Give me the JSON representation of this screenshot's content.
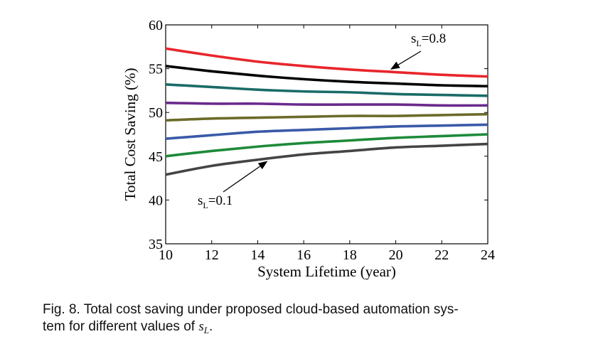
{
  "chart_data": {
    "type": "line",
    "xlabel": "System Lifetime (year)",
    "ylabel": "Total Cost Saving (%)",
    "xlim": [
      10,
      24
    ],
    "ylim": [
      35,
      60
    ],
    "xticks": [
      10,
      12,
      14,
      16,
      18,
      20,
      22,
      24
    ],
    "yticks": [
      35,
      40,
      45,
      50,
      55,
      60
    ],
    "grid": false,
    "legend": "none",
    "x": [
      10,
      12,
      14,
      16,
      18,
      20,
      22,
      24
    ],
    "series": [
      {
        "name": "s_L=0.8",
        "color": "#e8262c",
        "values": [
          57.3,
          56.5,
          55.8,
          55.3,
          54.9,
          54.6,
          54.3,
          54.1
        ]
      },
      {
        "name": "",
        "color": "#000000",
        "values": [
          55.3,
          54.7,
          54.2,
          53.8,
          53.5,
          53.3,
          53.1,
          53.0
        ]
      },
      {
        "name": "",
        "color": "#1a6b66",
        "values": [
          53.2,
          52.9,
          52.6,
          52.4,
          52.3,
          52.1,
          52.0,
          51.9
        ]
      },
      {
        "name": "",
        "color": "#6a2a8c",
        "values": [
          51.1,
          51.0,
          51.0,
          50.9,
          50.9,
          50.9,
          50.8,
          50.8
        ]
      },
      {
        "name": "",
        "color": "#6b6b2a",
        "values": [
          49.1,
          49.3,
          49.4,
          49.5,
          49.6,
          49.6,
          49.7,
          49.8
        ]
      },
      {
        "name": "",
        "color": "#3a5aa8",
        "values": [
          47.0,
          47.4,
          47.8,
          48.0,
          48.2,
          48.4,
          48.5,
          48.6
        ]
      },
      {
        "name": "",
        "color": "#1e8a3a",
        "values": [
          45.0,
          45.6,
          46.1,
          46.5,
          46.8,
          47.1,
          47.3,
          47.5
        ]
      },
      {
        "name": "s_L=0.1",
        "color": "#444444",
        "values": [
          42.9,
          43.9,
          44.6,
          45.2,
          45.6,
          46.0,
          46.2,
          46.4
        ]
      }
    ],
    "annotations": [
      {
        "base": "s",
        "sub": "L",
        "tail": "=0.8",
        "arrow_to_series": 0,
        "arrow_x": 19.8
      },
      {
        "base": "s",
        "sub": "L",
        "tail": "=0.1",
        "arrow_to_series": 7,
        "arrow_x": 14.4
      }
    ]
  },
  "caption": {
    "text_before": "Fig. 8. Total cost saving under proposed cloud-based automation sys-",
    "text_line2_before": "tem for different values of ",
    "var_base": "s",
    "var_sub": "L",
    "text_after": "."
  }
}
